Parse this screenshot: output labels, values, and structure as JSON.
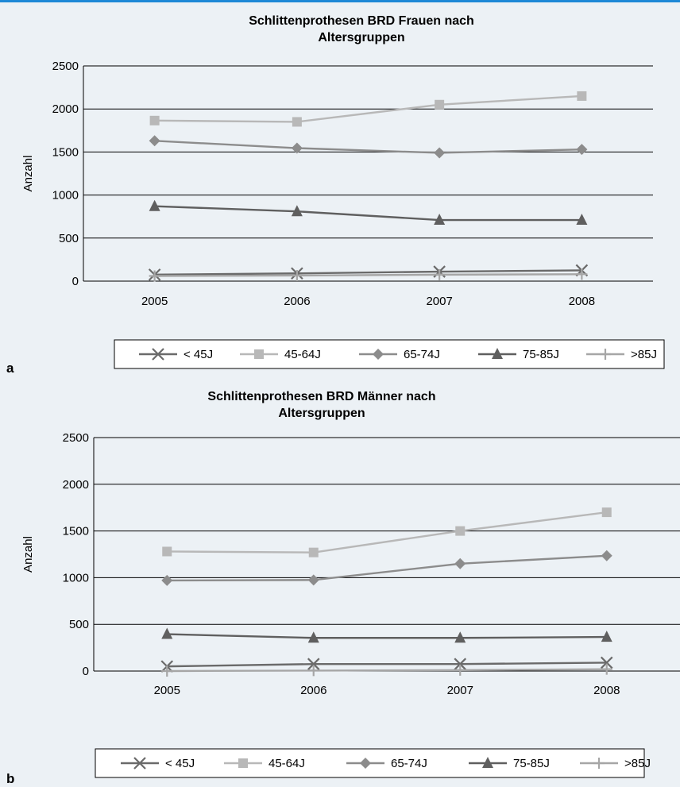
{
  "colors": {
    "background": "#ecf1f5",
    "accent_line": "#1e88d6",
    "lt45": "#6a6a6a",
    "a45_64": "#b8b8b8",
    "a65_74": "#8c8c8c",
    "a75_85": "#5f5f5f",
    "gt85": "#a6a6a6"
  },
  "chart_data": [
    {
      "panel_label": "a",
      "type": "line",
      "title_lines": [
        "Schlittenprothesen BRD Frauen nach",
        "Altersgruppen"
      ],
      "xlabel": "",
      "ylabel": "Anzahl",
      "categories": [
        "2005",
        "2006",
        "2007",
        "2008"
      ],
      "yticks": [
        "0",
        "500",
        "1000",
        "1500",
        "2000",
        "2500"
      ],
      "ylim": [
        0,
        2500
      ],
      "grid": "horizontal",
      "legend_position": "bottom",
      "series": [
        {
          "name": "< 45J",
          "marker": "x",
          "color": "#6a6a6a",
          "values": [
            75,
            90,
            110,
            125
          ]
        },
        {
          "name": "45-64J",
          "marker": "square",
          "color": "#b8b8b8",
          "values": [
            1865,
            1850,
            2050,
            2150
          ]
        },
        {
          "name": "65-74J",
          "marker": "diamond",
          "color": "#8c8c8c",
          "values": [
            1630,
            1545,
            1490,
            1530
          ]
        },
        {
          "name": "75-85J",
          "marker": "triangle",
          "color": "#5f5f5f",
          "values": [
            870,
            810,
            710,
            710
          ]
        },
        {
          "name": ">85J",
          "marker": "plus",
          "color": "#a6a6a6",
          "values": [
            60,
            65,
            75,
            80
          ]
        }
      ]
    },
    {
      "panel_label": "b",
      "type": "line",
      "title_lines": [
        "Schlittenprothesen BRD Männer nach",
        "Altersgruppen"
      ],
      "xlabel": "",
      "ylabel": "Anzahl",
      "categories": [
        "2005",
        "2006",
        "2007",
        "2008"
      ],
      "yticks": [
        "0",
        "500",
        "1000",
        "1500",
        "2000",
        "2500"
      ],
      "ylim": [
        0,
        2500
      ],
      "grid": "horizontal",
      "legend_position": "bottom",
      "series": [
        {
          "name": "< 45J",
          "marker": "x",
          "color": "#6a6a6a",
          "values": [
            50,
            75,
            75,
            90
          ]
        },
        {
          "name": "45-64J",
          "marker": "square",
          "color": "#b8b8b8",
          "values": [
            1280,
            1270,
            1500,
            1700
          ]
        },
        {
          "name": "65-74J",
          "marker": "diamond",
          "color": "#8c8c8c",
          "values": [
            970,
            975,
            1150,
            1235
          ]
        },
        {
          "name": "75-85J",
          "marker": "triangle",
          "color": "#5f5f5f",
          "values": [
            395,
            355,
            355,
            365
          ]
        },
        {
          "name": ">85J",
          "marker": "plus",
          "color": "#a6a6a6",
          "values": [
            0,
            5,
            10,
            20
          ]
        }
      ]
    }
  ]
}
